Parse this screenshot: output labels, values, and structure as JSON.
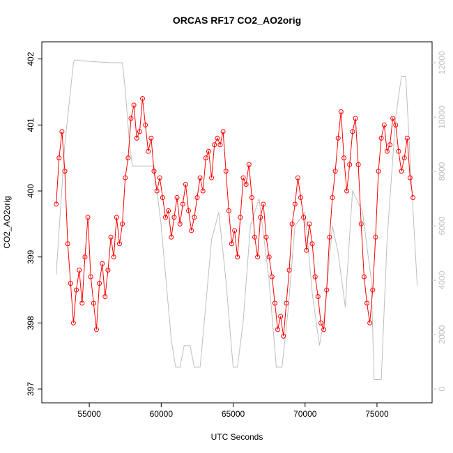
{
  "chart_data": {
    "type": "line",
    "title": "ORCAS RF17 CO2_AO2orig",
    "xlabel": "UTC Seconds",
    "ylabel": "CO2_AO2orig",
    "xlim": [
      51700,
      78830
    ],
    "ylim": [
      396.79,
      402.26
    ],
    "y2lim": [
      -510,
      12770
    ],
    "xticks": [
      55000,
      60000,
      65000,
      70000,
      75000
    ],
    "yticks": [
      397,
      398,
      399,
      400,
      401,
      402
    ],
    "y2ticks": [
      0,
      2000,
      4000,
      6000,
      8000,
      10000,
      12000
    ],
    "series": [
      {
        "color": "#ff0000",
        "markers": true,
        "x": [
          52700,
          52900,
          53100,
          53300,
          53500,
          53700,
          53900,
          54100,
          54300,
          54500,
          54700,
          54900,
          55100,
          55300,
          55500,
          55700,
          55900,
          56100,
          56300,
          56500,
          56700,
          56900,
          57100,
          57300,
          57500,
          57700,
          57900,
          58100,
          58300,
          58500,
          58700,
          58900,
          59100,
          59300,
          59500,
          59700,
          59900,
          60100,
          60300,
          60500,
          60700,
          60900,
          61100,
          61300,
          61500,
          61700,
          61900,
          62100,
          62300,
          62500,
          62700,
          62900,
          63100,
          63300,
          63500,
          63700,
          63900,
          64100,
          64300,
          64500,
          64700,
          64900,
          65100,
          65300,
          65500,
          65700,
          65900,
          66100,
          66300,
          66500,
          66700,
          66900,
          67100,
          67300,
          67500,
          67700,
          67900,
          68100,
          68300,
          68500,
          68700,
          68900,
          69100,
          69300,
          69500,
          69700,
          69900,
          70100,
          70300,
          70500,
          70700,
          70900,
          71100,
          71300,
          71500,
          71700,
          71900,
          72100,
          72300,
          72500,
          72700,
          72900,
          73100,
          73300,
          73500,
          73700,
          73900,
          74100,
          74300,
          74500,
          74700,
          74900,
          75100,
          75300,
          75500,
          75700,
          75900,
          76100,
          76300,
          76500,
          76700,
          76900,
          77100,
          77300,
          77500
        ],
        "values": [
          399.8,
          400.5,
          400.9,
          400.3,
          399.2,
          398.6,
          398.0,
          398.5,
          398.8,
          398.3,
          399.0,
          399.6,
          398.7,
          398.3,
          397.9,
          398.6,
          398.9,
          398.4,
          398.8,
          399.3,
          399.0,
          399.6,
          399.2,
          399.5,
          400.2,
          400.5,
          401.1,
          401.3,
          400.8,
          400.9,
          401.4,
          401.0,
          400.6,
          400.8,
          400.3,
          400.0,
          400.2,
          399.9,
          399.6,
          399.7,
          399.3,
          399.6,
          399.9,
          399.5,
          399.8,
          400.1,
          399.7,
          399.4,
          399.6,
          399.9,
          400.2,
          400.0,
          400.5,
          400.6,
          400.2,
          400.7,
          400.8,
          400.7,
          400.9,
          400.3,
          399.7,
          399.2,
          399.4,
          399.0,
          399.6,
          400.2,
          400.1,
          400.4,
          399.9,
          399.3,
          399.0,
          399.6,
          399.8,
          399.3,
          399.0,
          398.7,
          398.3,
          397.9,
          398.1,
          397.8,
          398.3,
          398.8,
          399.5,
          399.8,
          400.2,
          399.9,
          399.6,
          399.1,
          399.5,
          399.2,
          398.7,
          398.4,
          398.0,
          397.9,
          398.5,
          399.3,
          399.9,
          400.3,
          400.8,
          401.2,
          400.5,
          400.0,
          400.4,
          400.9,
          401.1,
          400.4,
          399.5,
          398.7,
          398.3,
          398.0,
          398.5,
          399.3,
          400.3,
          400.8,
          401.0,
          400.6,
          400.7,
          401.1,
          401.0,
          400.6,
          400.3,
          400.5,
          400.8,
          400.2,
          399.9
        ]
      },
      {
        "color": "#bebebe",
        "axis": "y2",
        "markers": false,
        "x": [
          52700,
          53300,
          53600,
          53900,
          54000,
          55000,
          56500,
          57300,
          57500,
          57800,
          58000,
          59500,
          60000,
          60700,
          61000,
          61300,
          61600,
          62000,
          62300,
          62700,
          63000,
          63500,
          64000,
          64500,
          65000,
          65300,
          65700,
          66200,
          66800,
          67500,
          68000,
          68400,
          68800,
          69300,
          70000,
          70500,
          71000,
          71300,
          71900,
          72300,
          72800,
          72900,
          73300,
          74000,
          74600,
          74800,
          75300,
          75700,
          76300,
          76700,
          77000,
          77300,
          77800
        ],
        "values": [
          4200,
          9000,
          10500,
          12000,
          12100,
          12050,
          12000,
          12000,
          11000,
          9000,
          8200,
          8200,
          6000,
          1800,
          800,
          800,
          1600,
          1600,
          800,
          800,
          2500,
          5500,
          6500,
          4000,
          800,
          800,
          2500,
          6000,
          7000,
          4000,
          800,
          800,
          2800,
          6000,
          6500,
          3500,
          1600,
          2500,
          6000,
          5000,
          3000,
          4000,
          7300,
          6500,
          4000,
          350,
          350,
          5500,
          10000,
          11500,
          11500,
          8500,
          3800
        ]
      }
    ]
  }
}
